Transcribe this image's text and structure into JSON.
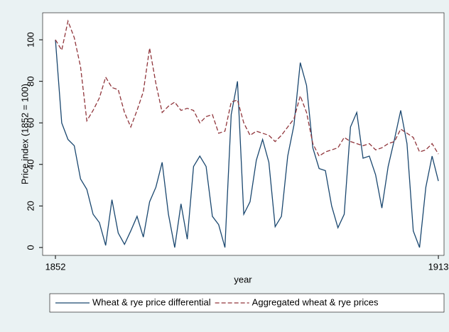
{
  "chart_data": {
    "type": "line",
    "x_label": "year",
    "y_label": "Price index (1852 = 100)",
    "x": [
      1852,
      1853,
      1854,
      1855,
      1856,
      1857,
      1858,
      1859,
      1860,
      1861,
      1862,
      1863,
      1864,
      1865,
      1866,
      1867,
      1868,
      1869,
      1870,
      1871,
      1872,
      1873,
      1874,
      1875,
      1876,
      1877,
      1878,
      1879,
      1880,
      1881,
      1882,
      1883,
      1884,
      1885,
      1886,
      1887,
      1888,
      1889,
      1890,
      1891,
      1892,
      1893,
      1894,
      1895,
      1896,
      1897,
      1898,
      1899,
      1900,
      1901,
      1902,
      1903,
      1904,
      1905,
      1906,
      1907,
      1908,
      1909,
      1910,
      1911,
      1912,
      1913
    ],
    "series": [
      {
        "name": "Wheat & rye price differential",
        "color": "#1a476f",
        "dashed": false,
        "values": [
          100,
          60,
          52,
          49,
          33,
          28,
          16,
          12,
          1,
          23,
          7,
          1.5,
          8,
          15,
          5,
          22,
          29,
          41,
          16,
          0,
          21,
          4,
          39,
          44,
          39,
          15,
          11,
          0,
          64,
          80,
          16,
          22,
          42,
          52,
          41,
          10,
          15,
          44,
          59,
          89,
          78,
          48,
          38,
          37,
          20,
          9.5,
          16,
          58,
          65,
          43,
          44,
          35,
          19,
          39,
          52,
          66,
          50,
          8,
          0,
          29,
          44,
          32
        ]
      },
      {
        "name": "Aggregated wheat & rye prices",
        "color": "#90353b",
        "dashed": true,
        "values": [
          100,
          95,
          109,
          101,
          87,
          61,
          66,
          72,
          82,
          77,
          76,
          65,
          58,
          66,
          75,
          96,
          79,
          65,
          68,
          70,
          66,
          67,
          66,
          60,
          63,
          64,
          55,
          56,
          70,
          71,
          60,
          54,
          56,
          55,
          54,
          51,
          54,
          58,
          62,
          73,
          65,
          50,
          44,
          46,
          47,
          48,
          53,
          51,
          50,
          49,
          50,
          47,
          48,
          50,
          51,
          57,
          55,
          53,
          46,
          47,
          50,
          45
        ]
      }
    ],
    "xlim": [
      1849.96,
      1913.9
    ],
    "xticks": [
      1852,
      1913
    ],
    "ylim": [
      -3.8,
      113
    ],
    "yticks": [
      0,
      20,
      40,
      60,
      80,
      100
    ],
    "grid": false
  }
}
